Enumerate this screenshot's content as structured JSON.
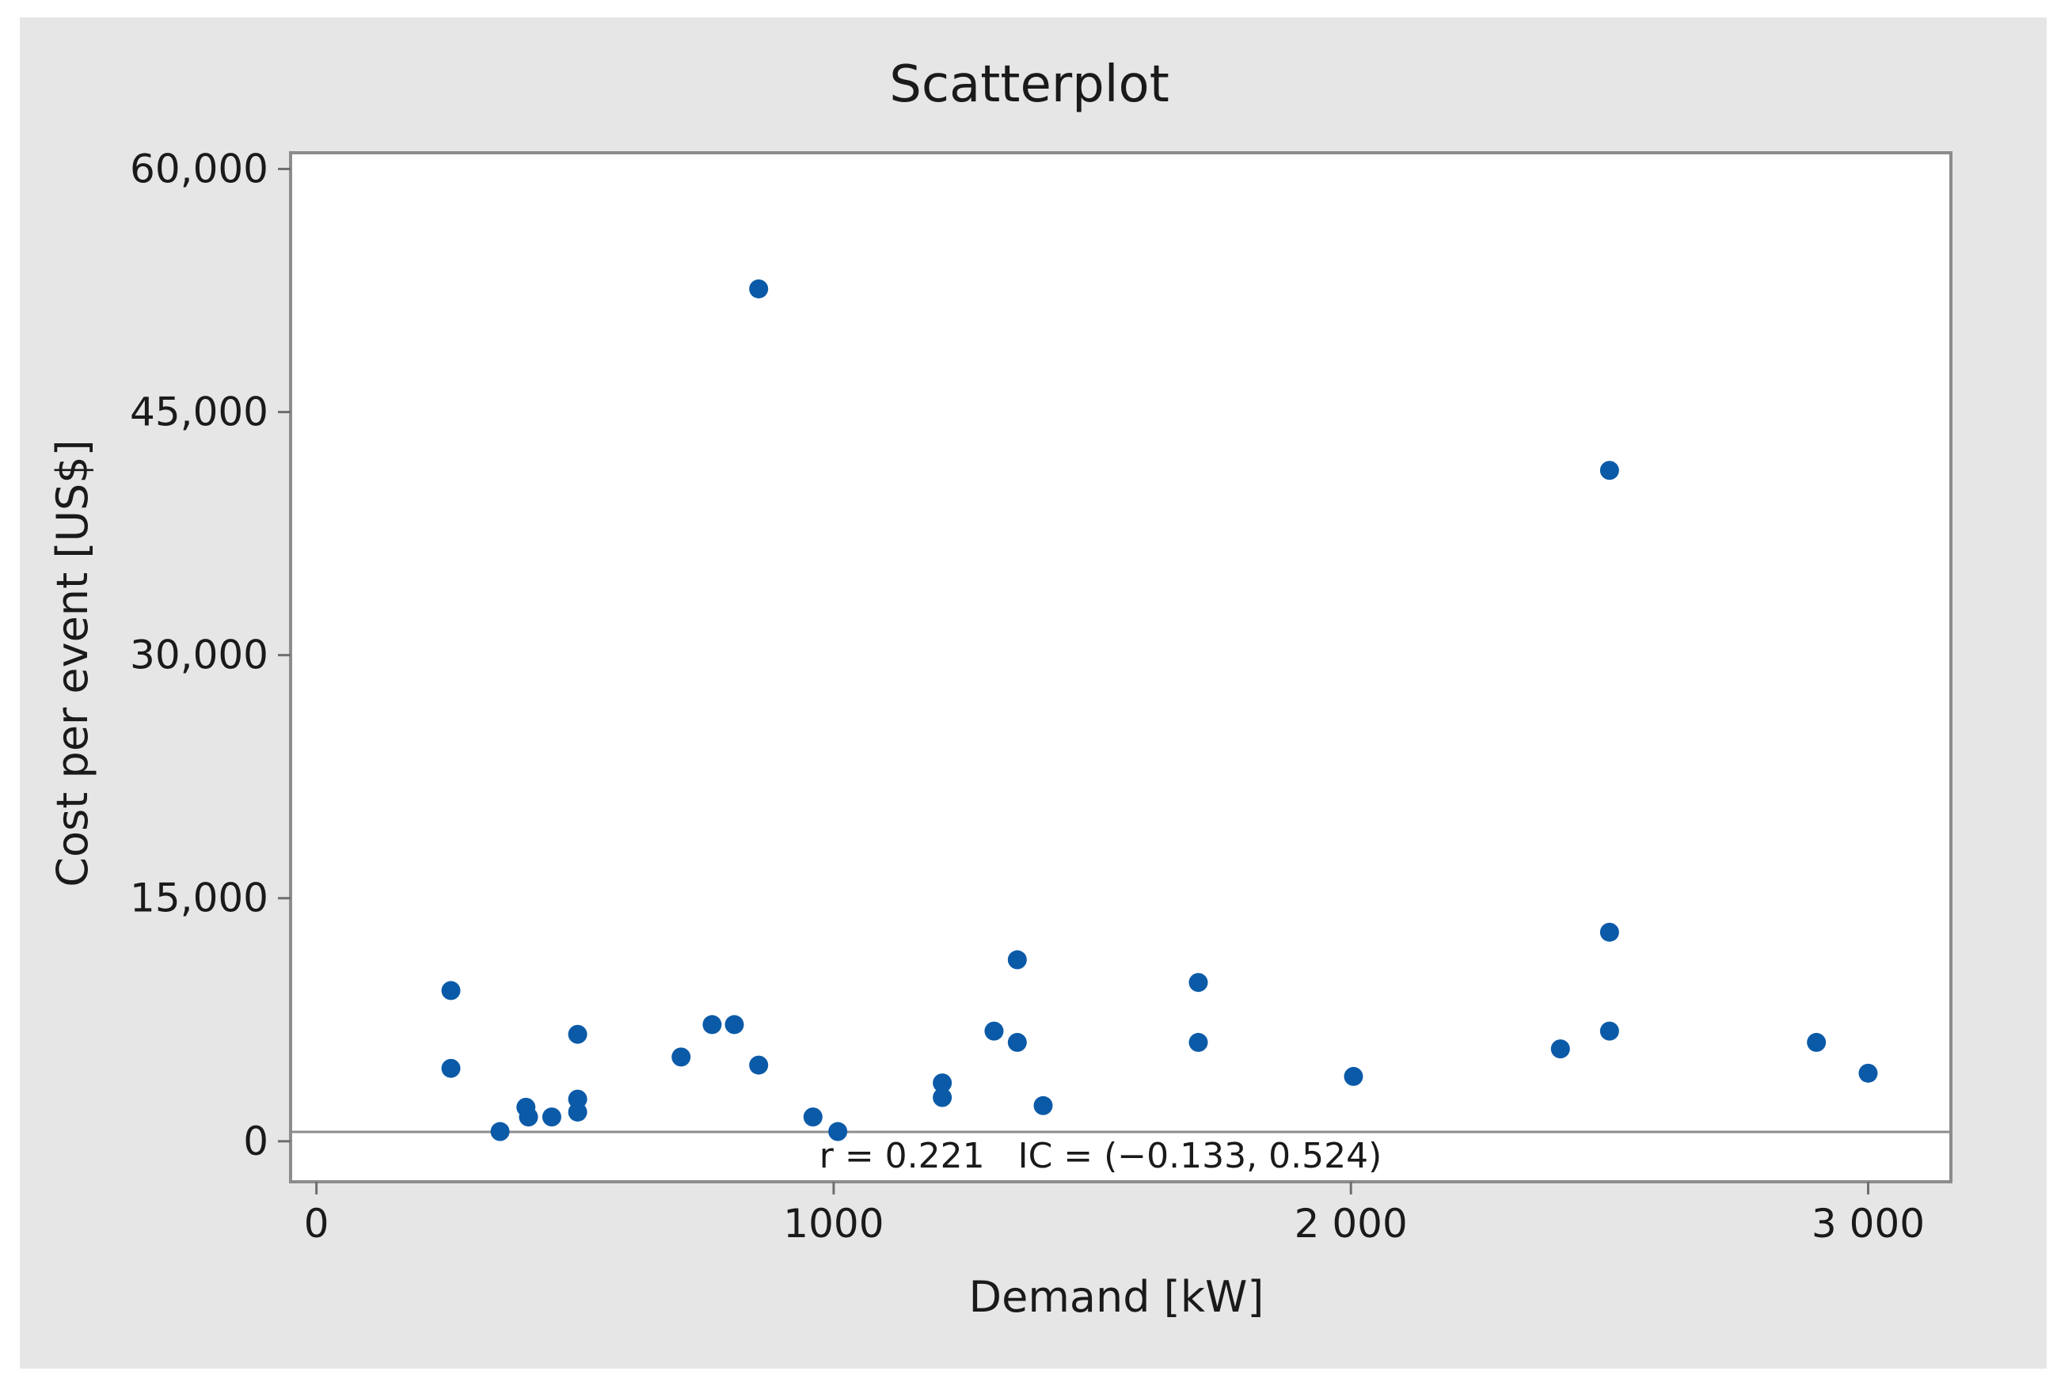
{
  "chart_data": {
    "type": "scatter",
    "title": "Scatterplot",
    "xlabel": "Demand [kW]",
    "ylabel": "Cost per event [US$]",
    "xlim": [
      -50,
      3160
    ],
    "ylim": [
      -2500,
      61000
    ],
    "x_ticks": [
      {
        "value": 0,
        "label": "0"
      },
      {
        "value": 1000,
        "label": "1000"
      },
      {
        "value": 2000,
        "label": "2 000"
      },
      {
        "value": 3000,
        "label": "3 000"
      }
    ],
    "y_ticks": [
      {
        "value": 0,
        "label": "0"
      },
      {
        "value": 15000,
        "label": "15,000"
      },
      {
        "value": 30000,
        "label": "30,000"
      },
      {
        "value": 45000,
        "label": "45,000"
      },
      {
        "value": 60000,
        "label": "60,000"
      }
    ],
    "annotation": "r = 0.221   IC = (−0.133, 0.524)",
    "grid": false,
    "marker_color": "#0b5aa8",
    "background_color": "#e6e6e6",
    "points": [
      {
        "x": 260,
        "y": 9300
      },
      {
        "x": 260,
        "y": 4500
      },
      {
        "x": 355,
        "y": 600
      },
      {
        "x": 405,
        "y": 2100
      },
      {
        "x": 410,
        "y": 1500
      },
      {
        "x": 455,
        "y": 1500
      },
      {
        "x": 505,
        "y": 6600
      },
      {
        "x": 505,
        "y": 2600
      },
      {
        "x": 505,
        "y": 1800
      },
      {
        "x": 705,
        "y": 5200
      },
      {
        "x": 765,
        "y": 7200
      },
      {
        "x": 808,
        "y": 7200
      },
      {
        "x": 855,
        "y": 52600
      },
      {
        "x": 855,
        "y": 4700
      },
      {
        "x": 960,
        "y": 1500
      },
      {
        "x": 1008,
        "y": 600
      },
      {
        "x": 1210,
        "y": 3600
      },
      {
        "x": 1210,
        "y": 2700
      },
      {
        "x": 1310,
        "y": 6800
      },
      {
        "x": 1355,
        "y": 11200
      },
      {
        "x": 1355,
        "y": 6100
      },
      {
        "x": 1405,
        "y": 2200
      },
      {
        "x": 1705,
        "y": 9800
      },
      {
        "x": 1705,
        "y": 6100
      },
      {
        "x": 2005,
        "y": 4000
      },
      {
        "x": 2405,
        "y": 5700
      },
      {
        "x": 2500,
        "y": 41400
      },
      {
        "x": 2500,
        "y": 12900
      },
      {
        "x": 2500,
        "y": 6800
      },
      {
        "x": 2900,
        "y": 6100
      },
      {
        "x": 3000,
        "y": 4200
      }
    ]
  }
}
